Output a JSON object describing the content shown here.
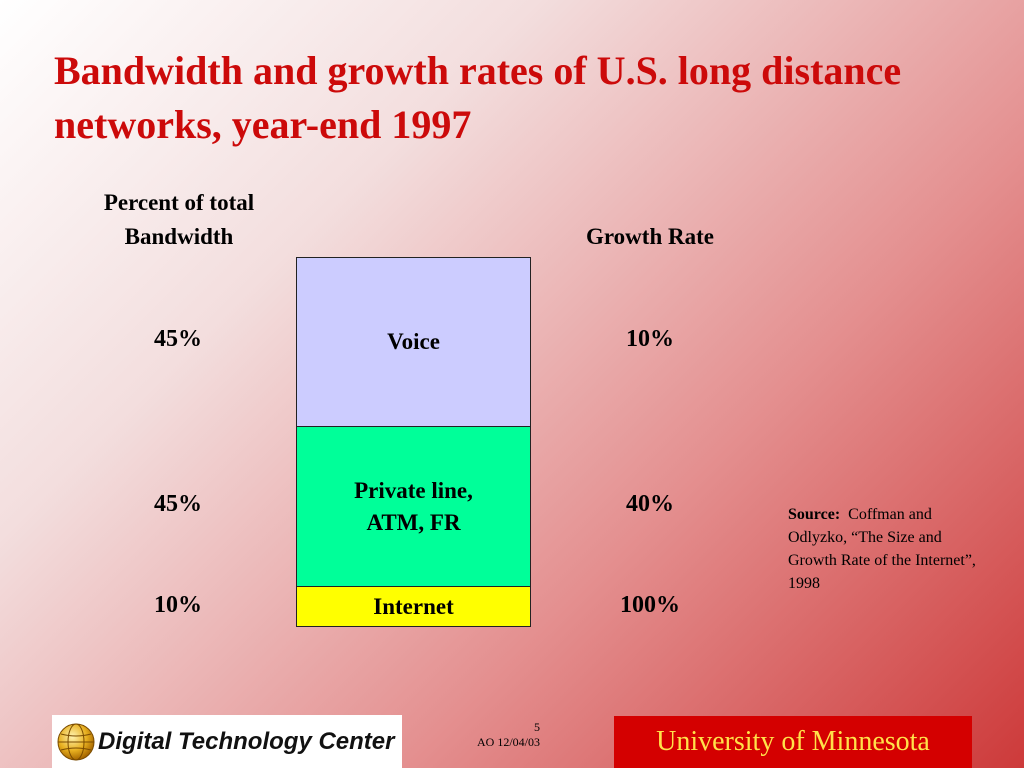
{
  "slide": {
    "title": "Bandwidth and growth rates of U.S. long distance networks, year-end 1997",
    "header_left": "Percent of total Bandwidth",
    "header_right": "Growth Rate",
    "segments": [
      {
        "label": "Voice",
        "bandwidth_percent": "45%",
        "growth_rate": "10%",
        "color": "#ccccff"
      },
      {
        "label": "Private line, ATM, FR",
        "bandwidth_percent": "45%",
        "growth_rate": "40%",
        "color": "#00ff99"
      },
      {
        "label": "Internet",
        "bandwidth_percent": "10%",
        "growth_rate": "100%",
        "color": "#ffff00"
      }
    ],
    "source": {
      "label": "Source:",
      "text": "Coffman and Odlyzko, “The Size and Growth Rate of the Internet”, 1998"
    }
  },
  "footer": {
    "logo_text": "Digital Technology Center",
    "page_number": "5",
    "page_note": "AO 12/04/03",
    "university": "University of Minnesota",
    "university_bg": "#d40000",
    "university_color": "#ffe24a"
  }
}
